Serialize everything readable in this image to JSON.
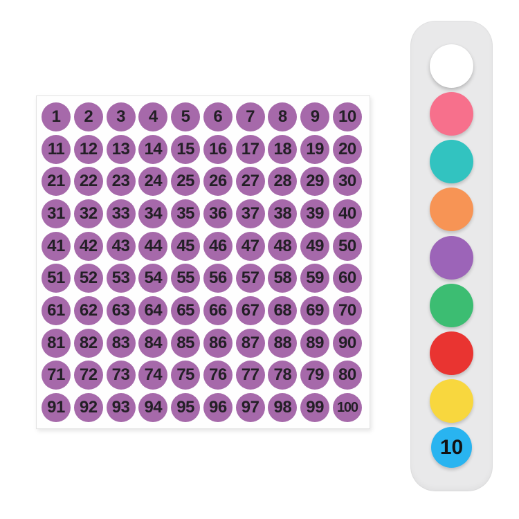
{
  "page": {
    "background_color": "#FFFFFF"
  },
  "sticker_sheet": {
    "description": "sheet of round number stickers 1-100",
    "sheet_color": "#FEFEFE",
    "circle_color": "#A669AA",
    "number_color": "#231F26",
    "rows": [
      [
        1,
        2,
        3,
        4,
        5,
        6,
        7,
        8,
        9,
        10
      ],
      [
        11,
        12,
        13,
        14,
        15,
        16,
        17,
        18,
        19,
        20
      ],
      [
        21,
        22,
        23,
        24,
        25,
        26,
        27,
        28,
        29,
        30
      ],
      [
        31,
        32,
        33,
        34,
        35,
        36,
        37,
        38,
        39,
        40
      ],
      [
        41,
        42,
        43,
        44,
        45,
        46,
        47,
        48,
        49,
        50
      ],
      [
        51,
        52,
        53,
        54,
        55,
        56,
        57,
        58,
        59,
        60
      ],
      [
        61,
        62,
        63,
        64,
        65,
        66,
        67,
        68,
        69,
        70
      ],
      [
        81,
        82,
        83,
        84,
        85,
        86,
        87,
        88,
        89,
        90
      ],
      [
        71,
        72,
        73,
        74,
        75,
        76,
        77,
        78,
        79,
        80
      ],
      [
        91,
        92,
        93,
        94,
        95,
        96,
        97,
        98,
        99,
        100
      ]
    ]
  },
  "palette_strip": {
    "description": "vertical strip of round color sticker samples",
    "background": "#E9E9EA",
    "circles": [
      {
        "name": "white",
        "color": "#FFFFFF",
        "label": ""
      },
      {
        "name": "pink",
        "color": "#F7708C",
        "label": ""
      },
      {
        "name": "teal",
        "color": "#32C3C0",
        "label": ""
      },
      {
        "name": "orange",
        "color": "#F79455",
        "label": ""
      },
      {
        "name": "purple",
        "color": "#9C64B8",
        "label": ""
      },
      {
        "name": "green",
        "color": "#3CBD72",
        "label": ""
      },
      {
        "name": "red",
        "color": "#E93431",
        "label": ""
      },
      {
        "name": "yellow",
        "color": "#F8D73E",
        "label": ""
      },
      {
        "name": "blue",
        "color": "#29B4F0",
        "label": "10"
      }
    ]
  }
}
